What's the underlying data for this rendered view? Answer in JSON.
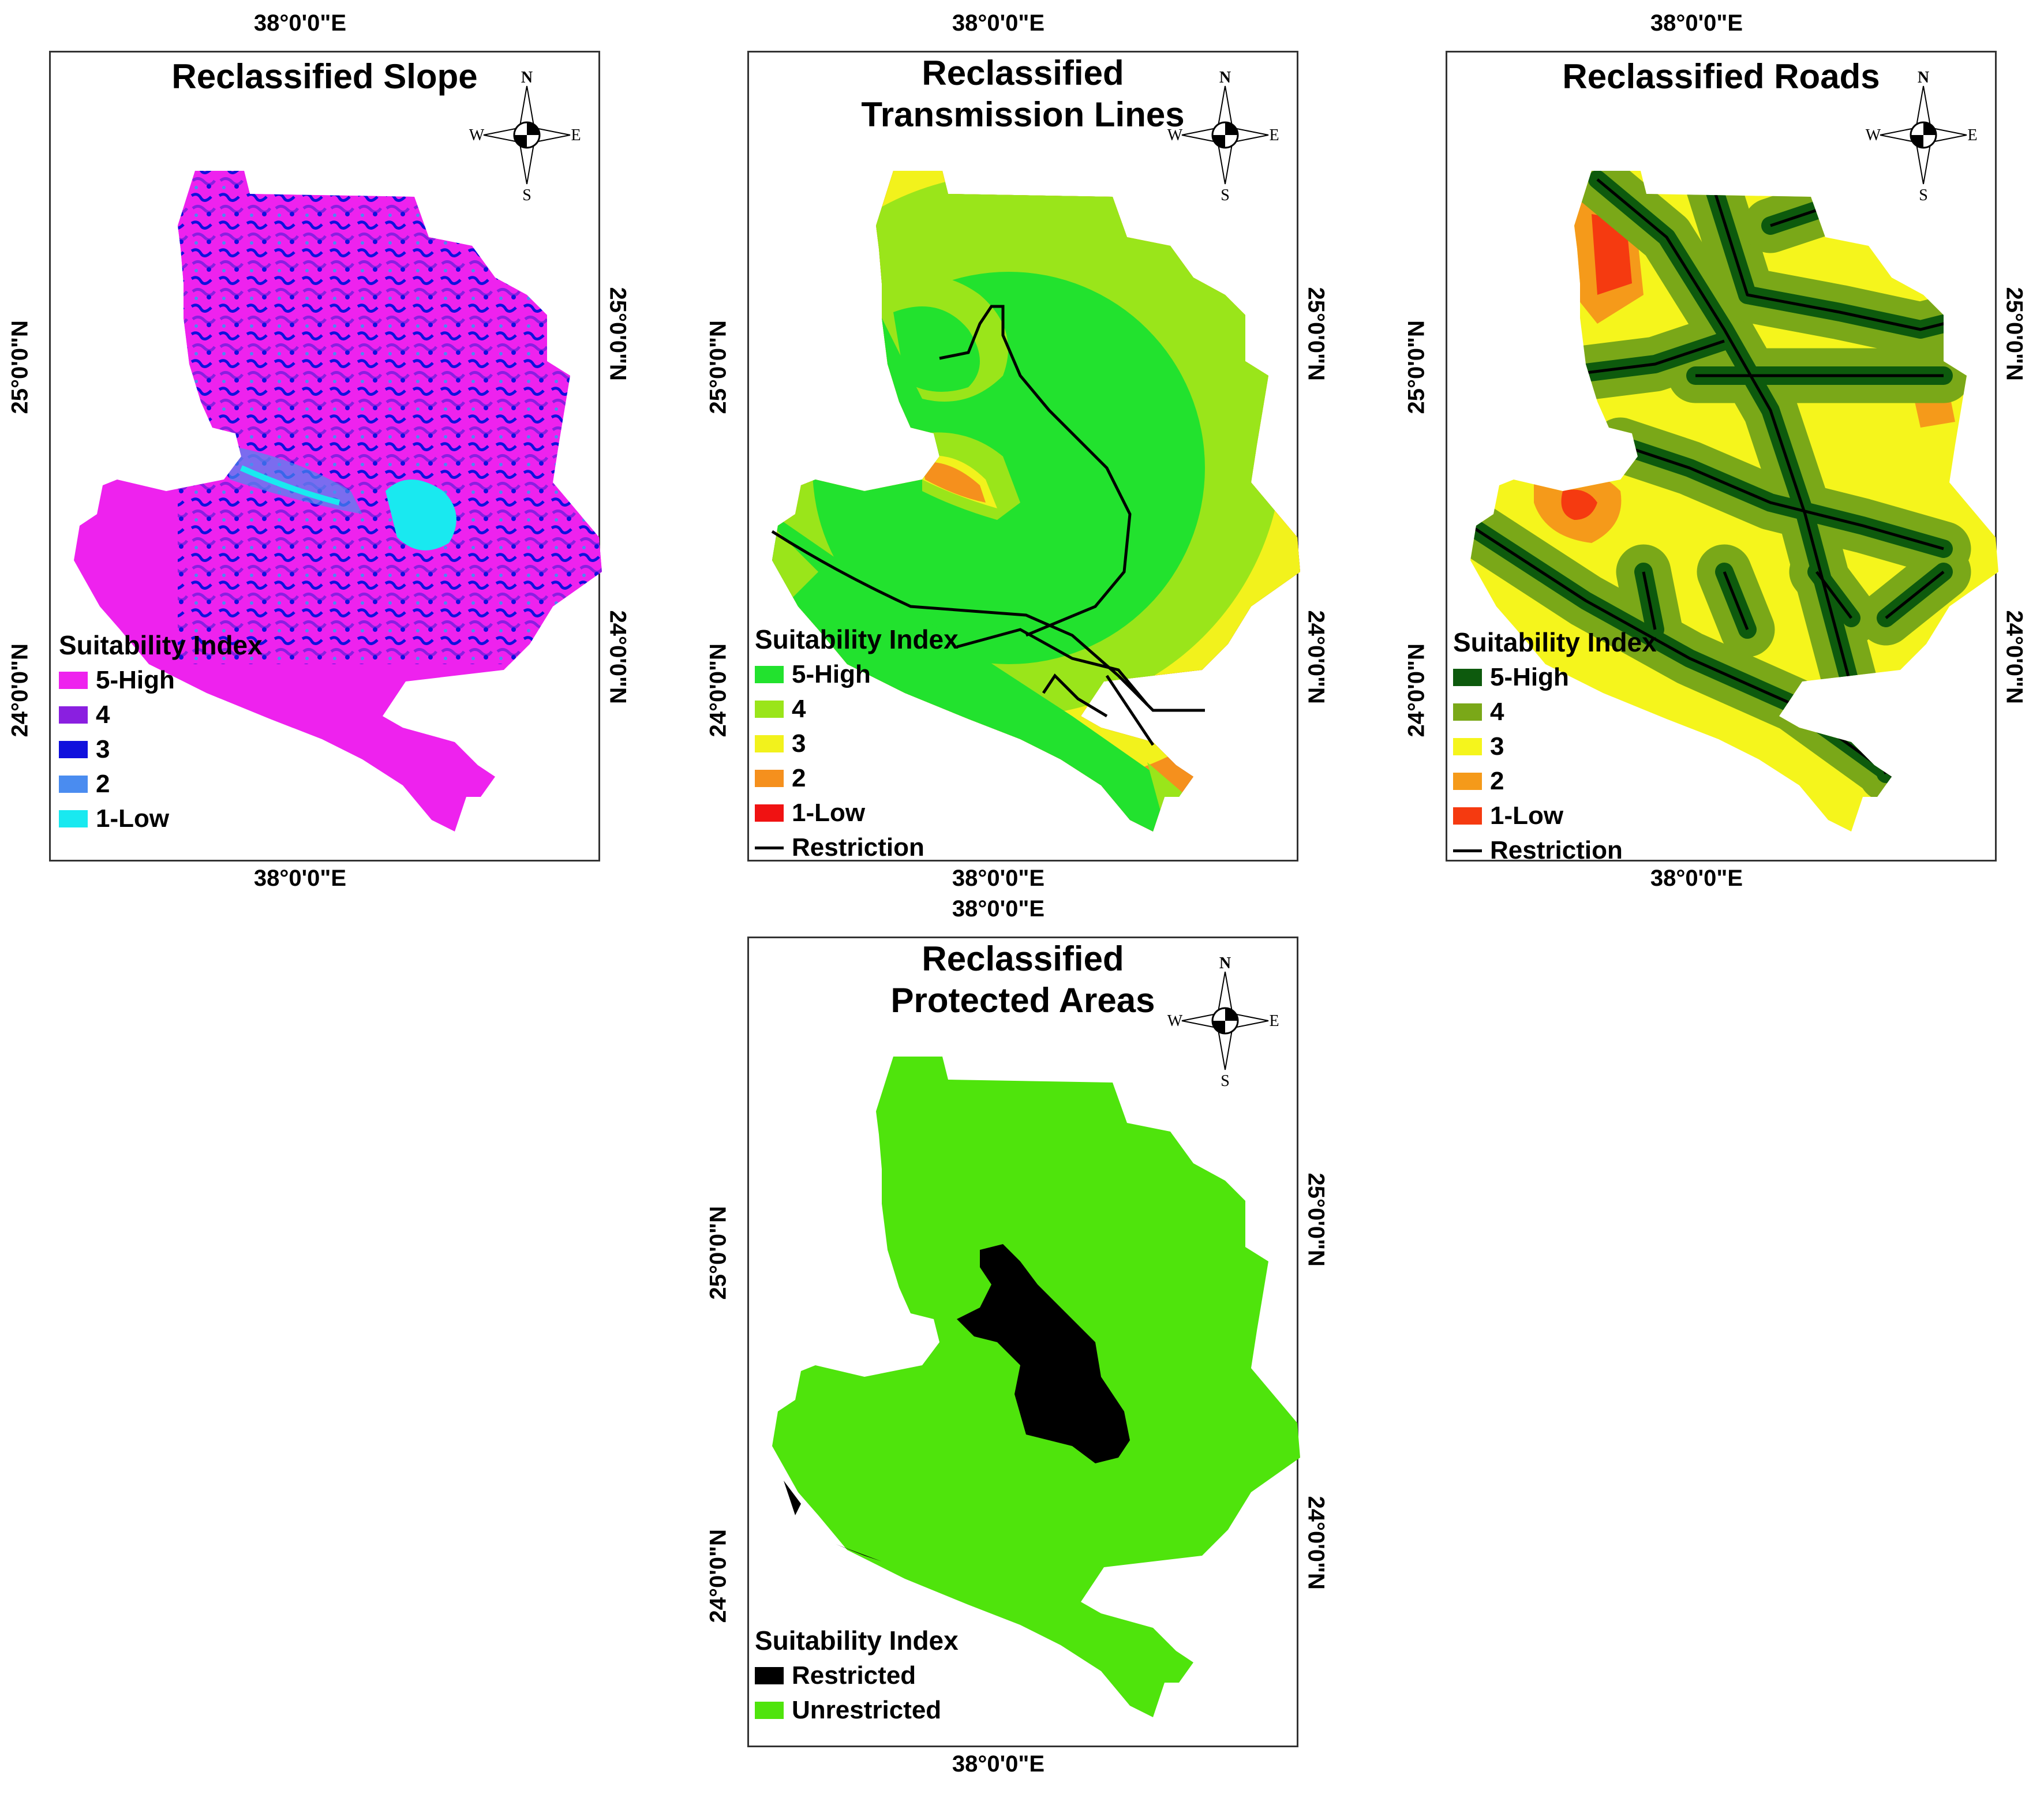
{
  "colors": {
    "slope": [
      "#ee22ee",
      "#8a1fe0",
      "#1010dd",
      "#4a8cf0",
      "#19e9f0"
    ],
    "tl": [
      "#22e22e",
      "#9ae51a",
      "#f2f21c",
      "#f5901d",
      "#f01212"
    ],
    "roads": [
      "#0d5a0d",
      "#7aa818",
      "#f5f51c",
      "#f59a1a",
      "#f53a10"
    ],
    "pa": [
      "#000000",
      "#4fe40c"
    ]
  },
  "compass": {
    "n": "N",
    "s": "S",
    "e": "E",
    "w": "W"
  },
  "panels": {
    "slope": {
      "title": "Reclassified Slope",
      "top_lon": "38°0'0\"E",
      "bottom_lon": "38°0'0\"E",
      "left_lat_top": "25°0'0\"N",
      "left_lat_bottom": "24°0'0\"N",
      "right_lat_top": "25°0'0\"N",
      "right_lat_bottom": "24°0'0\"N",
      "legend_title": "Suitability Index",
      "legend": [
        "5-High",
        "4",
        "3",
        "2",
        "1-Low"
      ]
    },
    "tl": {
      "title_line1": "Reclassified",
      "title_line2": "Transmission Lines",
      "top_lon": "38°0'0\"E",
      "bottom_lon": "38°0'0\"E",
      "left_lat_top": "25°0'0\"N",
      "left_lat_bottom": "24°0'0\"N",
      "right_lat_top": "25°0'0\"N",
      "right_lat_bottom": "24°0'0\"N",
      "legend_title": "Suitability Index",
      "legend": [
        "5-High",
        "4",
        "3",
        "2",
        "1-Low"
      ],
      "restriction": "Restriction"
    },
    "roads": {
      "title": "Reclassified Roads",
      "top_lon": "38°0'0\"E",
      "bottom_lon": "38°0'0\"E",
      "left_lat_top": "25°0'0\"N",
      "left_lat_bottom": "24°0'0\"N",
      "right_lat_top": "25°0'0\"N",
      "right_lat_bottom": "24°0'0\"N",
      "legend_title": "Suitability Index",
      "legend": [
        "5-High",
        "4",
        "3",
        "2",
        "1-Low"
      ],
      "restriction": "Restriction"
    },
    "pa": {
      "title_line1": "Reclassified",
      "title_line2": "Protected Areas",
      "top_lon": "38°0'0\"E",
      "bottom_lon": "38°0'0\"E",
      "left_lat_top": "25°0'0\"N",
      "left_lat_bottom": "24°0'0\"N",
      "right_lat_top": "25°0'0\"N",
      "right_lat_bottom": "24°0'0\"N",
      "legend_title": "Suitability Index",
      "legend": [
        "Restricted",
        "Unrestricted"
      ]
    }
  }
}
